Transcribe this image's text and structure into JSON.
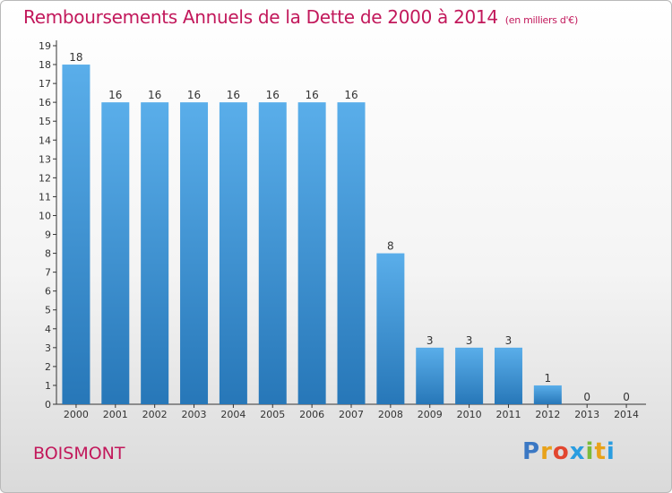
{
  "header": {
    "title": "Remboursements Annuels de la Dette de 2000 à 2014",
    "subtitle": "(en milliers d'€)"
  },
  "footer": {
    "commune": "BOISMONT",
    "logo": [
      "P",
      "r",
      "o",
      "x",
      "i",
      "t",
      "i"
    ]
  },
  "colors": {
    "title": "#c2185b",
    "bar_top": "#5aaeea",
    "bar_bottom": "#2777b8",
    "logo_letters": [
      "#3b78c4",
      "#e8a21a",
      "#e2462f",
      "#2a9de0",
      "#7bbb3a",
      "#e8a21a",
      "#2a9de0"
    ]
  },
  "chart_data": {
    "type": "bar",
    "title": "Remboursements Annuels de la Dette de 2000 à 2014",
    "unit": "(en milliers d'€)",
    "categories": [
      "2000",
      "2001",
      "2002",
      "2003",
      "2004",
      "2005",
      "2006",
      "2007",
      "2008",
      "2009",
      "2010",
      "2011",
      "2012",
      "2013",
      "2014"
    ],
    "values": [
      18,
      16,
      16,
      16,
      16,
      16,
      16,
      16,
      8,
      3,
      3,
      3,
      1,
      0,
      0
    ],
    "ylim": [
      0,
      19
    ],
    "yticks": [
      0,
      1,
      2,
      3,
      4,
      5,
      6,
      7,
      8,
      9,
      10,
      11,
      12,
      13,
      14,
      15,
      16,
      17,
      18,
      19
    ],
    "xlabel": "",
    "ylabel": "",
    "grid": false,
    "data_labels": true
  }
}
